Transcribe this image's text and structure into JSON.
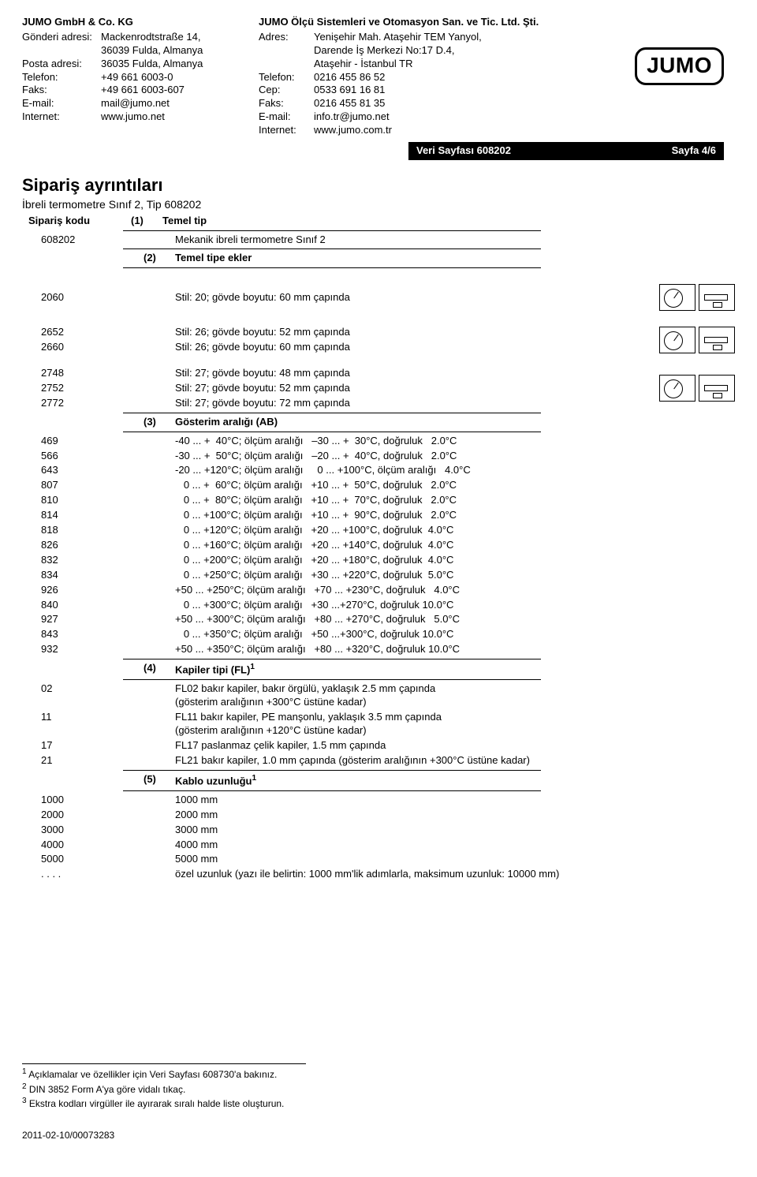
{
  "header": {
    "left": {
      "company": "JUMO GmbH & Co. KG",
      "rows": [
        {
          "label": "Gönderi adresi:",
          "val": "Mackenrodtstraße 14,"
        },
        {
          "label": "",
          "val": "36039 Fulda, Almanya"
        },
        {
          "label": "Posta adresi:",
          "val": "36035 Fulda, Almanya"
        },
        {
          "label": "Telefon:",
          "val": "+49 661 6003-0"
        },
        {
          "label": "Faks:",
          "val": "+49 661 6003-607"
        },
        {
          "label": "E-mail:",
          "val": "mail@jumo.net"
        },
        {
          "label": "Internet:",
          "val": "www.jumo.net"
        }
      ]
    },
    "right": {
      "company": "JUMO Ölçü Sistemleri ve Otomasyon San. ve Tic. Ltd. Şti.",
      "rows": [
        {
          "label": "Adres:",
          "val": "Yenişehir Mah. Ataşehir TEM Yanyol,"
        },
        {
          "label": "",
          "val": "Darende İş Merkezi No:17 D.4,"
        },
        {
          "label": "",
          "val": "Ataşehir - İstanbul TR"
        },
        {
          "label": "Telefon:",
          "val": "0216 455 86 52"
        },
        {
          "label": "Cep:",
          "val": "0533 691 16 81"
        },
        {
          "label": "Faks:",
          "val": "0216 455 81 35"
        },
        {
          "label": "E-mail:",
          "val": "info.tr@jumo.net"
        },
        {
          "label": "Internet:",
          "val": "www.jumo.com.tr"
        }
      ]
    },
    "logo_text": "JUMO"
  },
  "datasheet": {
    "title": "Veri Sayfası 608202",
    "page": "Sayfa 4/6"
  },
  "section": {
    "title": "Sipariş ayrıntıları",
    "subtitle": "İbreli termometre Sınıf 2, Tip 608202"
  },
  "order_code": {
    "label": "Sipariş kodu",
    "s1": "(1)",
    "s1_label": "Temel tip",
    "code": "608202",
    "code_desc": "Mekanik ibreli termometre Sınıf 2",
    "s2": "(2)",
    "s2_label": "Temel tipe ekler"
  },
  "styles_a": [
    {
      "code": "2060",
      "desc": "Stil: 20; gövde boyutu: 60 mm çapında"
    }
  ],
  "styles_b": [
    {
      "code": "2652",
      "desc": "Stil: 26; gövde boyutu: 52 mm çapında"
    },
    {
      "code": "2660",
      "desc": "Stil: 26; gövde boyutu: 60 mm çapında"
    }
  ],
  "styles_c": [
    {
      "code": "2748",
      "desc": "Stil: 27; gövde boyutu: 48 mm çapında"
    },
    {
      "code": "2752",
      "desc": "Stil: 27; gövde boyutu: 52 mm çapında"
    },
    {
      "code": "2772",
      "desc": "Stil: 27; gövde boyutu: 72 mm çapında"
    }
  ],
  "range_header": {
    "num": "(3)",
    "label": "Gösterim aralığı (AB)"
  },
  "ranges": [
    {
      "code": "469",
      "desc": "-40 ... +  40°C; ölçüm aralığı   –30 ... +  30°C, doğruluk   2.0°C"
    },
    {
      "code": "566",
      "desc": "-30 ... +  50°C; ölçüm aralığı   –20 ... +  40°C, doğruluk   2.0°C"
    },
    {
      "code": "643",
      "desc": "-20 ... +120°C; ölçüm aralığı     0 ... +100°C, ölçüm aralığı   4.0°C"
    },
    {
      "code": "807",
      "desc": "   0 ... +  60°C; ölçüm aralığı   +10 ... +  50°C, doğruluk   2.0°C"
    },
    {
      "code": "810",
      "desc": "   0 ... +  80°C; ölçüm aralığı   +10 ... +  70°C, doğruluk   2.0°C"
    },
    {
      "code": "814",
      "desc": "   0 ... +100°C; ölçüm aralığı   +10 ... +  90°C, doğruluk   2.0°C"
    },
    {
      "code": "818",
      "desc": "   0 ... +120°C; ölçüm aralığı   +20 ... +100°C, doğruluk  4.0°C"
    },
    {
      "code": "826",
      "desc": "   0 ... +160°C; ölçüm aralığı   +20 ... +140°C, doğruluk  4.0°C"
    },
    {
      "code": "832",
      "desc": "   0 ... +200°C; ölçüm aralığı   +20 ... +180°C, doğruluk  4.0°C"
    },
    {
      "code": "834",
      "desc": "   0 ... +250°C; ölçüm aralığı   +30 ... +220°C, doğruluk  5.0°C"
    },
    {
      "code": "926",
      "desc": "+50 ... +250°C; ölçüm aralığı   +70 ... +230°C, doğruluk   4.0°C"
    },
    {
      "code": "840",
      "desc": "   0 ... +300°C; ölçüm aralığı   +30 ...+270°C, doğruluk 10.0°C"
    },
    {
      "code": "927",
      "desc": "+50 ... +300°C; ölçüm aralığı   +80 ... +270°C, doğruluk   5.0°C"
    },
    {
      "code": "843",
      "desc": "   0 ... +350°C; ölçüm aralığı   +50 ...+300°C, doğruluk 10.0°C"
    },
    {
      "code": "932",
      "desc": "+50 ... +350°C; ölçüm aralığı   +80 ... +320°C, doğruluk 10.0°C"
    }
  ],
  "capillary_header": {
    "num": "(4)",
    "label": "Kapiler tipi (FL)",
    "sup": "1"
  },
  "capillary": [
    {
      "code": "02",
      "desc": "FL02 bakır kapiler, bakır örgülü, yaklaşık 2.5 mm çapında",
      "desc2": "(gösterim aralığının +300°C üstüne kadar)"
    },
    {
      "code": "11",
      "desc": "FL11 bakır kapiler, PE manşonlu, yaklaşık 3.5 mm çapında",
      "desc2": "(gösterim aralığının +120°C üstüne kadar)"
    },
    {
      "code": "17",
      "desc": "FL17 paslanmaz çelik kapiler, 1.5 mm çapında",
      "desc2": ""
    },
    {
      "code": "21",
      "desc": "FL21 bakır kapiler, 1.0 mm çapında (gösterim aralığının +300°C üstüne kadar)",
      "desc2": ""
    }
  ],
  "cable_header": {
    "num": "(5)",
    "label": "Kablo uzunluğu",
    "sup": "1"
  },
  "cable": [
    {
      "code": "1000",
      "desc": "1000 mm"
    },
    {
      "code": "2000",
      "desc": "2000 mm"
    },
    {
      "code": "3000",
      "desc": "3000 mm"
    },
    {
      "code": "4000",
      "desc": "4000 mm"
    },
    {
      "code": "5000",
      "desc": "5000 mm"
    },
    {
      "code": ". . . .",
      "desc": "özel uzunluk (yazı ile belirtin: 1000 mm'lik adımlarla, maksimum uzunluk: 10000 mm)"
    }
  ],
  "footnotes": {
    "f1": "Açıklamalar ve özellikler için Veri Sayfası 608730'a bakınız.",
    "f2": "DIN 3852 Form A'ya göre vidalı tıkaç.",
    "f3": "Ekstra kodları virgüller ile ayırarak sıralı halde liste oluşturun.",
    "n1": "1",
    "n2": "2",
    "n3": "3"
  },
  "doc_id": "2011-02-10/00073283"
}
